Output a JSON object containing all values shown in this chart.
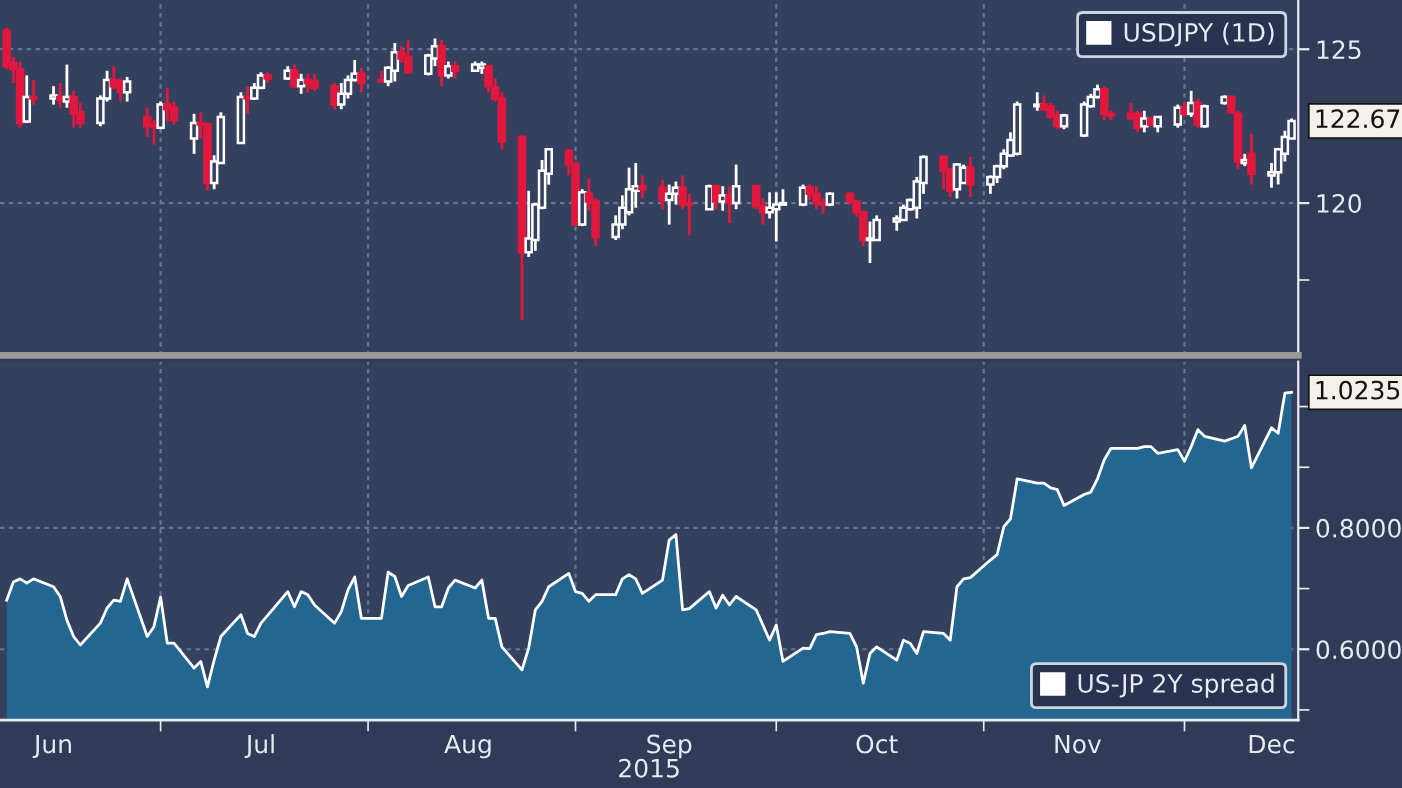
{
  "chart_data": [
    {
      "type": "candlestick",
      "x": [
        "2015-06-08",
        "2015-06-09",
        "2015-06-10",
        "2015-06-11",
        "2015-06-12",
        "2015-06-15",
        "2015-06-16",
        "2015-06-17",
        "2015-06-18",
        "2015-06-19",
        "2015-06-22",
        "2015-06-23",
        "2015-06-24",
        "2015-06-25",
        "2015-06-26",
        "2015-06-29",
        "2015-06-30",
        "2015-07-01",
        "2015-07-02",
        "2015-07-03",
        "2015-07-06",
        "2015-07-07",
        "2015-07-08",
        "2015-07-09",
        "2015-07-10",
        "2015-07-13",
        "2015-07-14",
        "2015-07-15",
        "2015-07-16",
        "2015-07-17",
        "2015-07-20",
        "2015-07-21",
        "2015-07-22",
        "2015-07-23",
        "2015-07-24",
        "2015-07-27",
        "2015-07-28",
        "2015-07-29",
        "2015-07-30",
        "2015-07-31",
        "2015-08-03",
        "2015-08-04",
        "2015-08-05",
        "2015-08-06",
        "2015-08-07",
        "2015-08-10",
        "2015-08-11",
        "2015-08-12",
        "2015-08-13",
        "2015-08-14",
        "2015-08-17",
        "2015-08-18",
        "2015-08-19",
        "2015-08-20",
        "2015-08-21",
        "2015-08-24",
        "2015-08-25",
        "2015-08-26",
        "2015-08-27",
        "2015-08-28",
        "2015-08-31",
        "2015-09-01",
        "2015-09-02",
        "2015-09-03",
        "2015-09-04",
        "2015-09-07",
        "2015-09-08",
        "2015-09-09",
        "2015-09-10",
        "2015-09-11",
        "2015-09-14",
        "2015-09-15",
        "2015-09-16",
        "2015-09-17",
        "2015-09-18",
        "2015-09-21",
        "2015-09-22",
        "2015-09-23",
        "2015-09-24",
        "2015-09-25",
        "2015-09-28",
        "2015-09-29",
        "2015-09-30",
        "2015-10-01",
        "2015-10-02",
        "2015-10-05",
        "2015-10-06",
        "2015-10-07",
        "2015-10-08",
        "2015-10-09",
        "2015-10-12",
        "2015-10-13",
        "2015-10-14",
        "2015-10-15",
        "2015-10-16",
        "2015-10-19",
        "2015-10-20",
        "2015-10-21",
        "2015-10-22",
        "2015-10-23",
        "2015-10-26",
        "2015-10-27",
        "2015-10-28",
        "2015-10-29",
        "2015-10-30",
        "2015-11-02",
        "2015-11-03",
        "2015-11-04",
        "2015-11-05",
        "2015-11-06",
        "2015-11-09",
        "2015-11-10",
        "2015-11-11",
        "2015-11-12",
        "2015-11-13",
        "2015-11-16",
        "2015-11-17",
        "2015-11-18",
        "2015-11-19",
        "2015-11-20",
        "2015-11-23",
        "2015-11-24",
        "2015-11-25",
        "2015-11-26",
        "2015-11-27",
        "2015-11-30",
        "2015-12-01",
        "2015-12-02",
        "2015-12-03",
        "2015-12-04",
        "2015-12-07",
        "2015-12-08",
        "2015-12-09",
        "2015-12-10",
        "2015-12-11",
        "2015-12-14",
        "2015-12-15",
        "2015-12-16",
        "2015-12-17"
      ],
      "series": [
        {
          "name": "USDJPY (1D)",
          "colors": [
            "#e3173d",
            "#e3173d",
            "#e3173d",
            "#ffffff",
            "#e3173d",
            "#ffffff",
            "#e3173d",
            "#ffffff",
            "#e3173d",
            "#e3173d",
            "#ffffff",
            "#ffffff",
            "#e3173d",
            "#e3173d",
            "#ffffff",
            "#e3173d",
            "#e3173d",
            "#ffffff",
            "#e3173d",
            "#e3173d",
            "#ffffff",
            "#e3173d",
            "#e3173d",
            "#ffffff",
            "#ffffff",
            "#ffffff",
            "#e3173d",
            "#ffffff",
            "#ffffff",
            "#e3173d",
            "#ffffff",
            "#e3173d",
            "#ffffff",
            "#e3173d",
            "#e3173d",
            "#e3173d",
            "#ffffff",
            "#ffffff",
            "#ffffff",
            "#e3173d",
            "#e3173d",
            "#ffffff",
            "#ffffff",
            "#e3173d",
            "#e3173d",
            "#ffffff",
            "#ffffff",
            "#e3173d",
            "#ffffff",
            "#e3173d",
            "#ffffff",
            "#ffffff",
            "#e3173d",
            "#e3173d",
            "#e3173d",
            "#e3173d",
            "#ffffff",
            "#ffffff",
            "#ffffff",
            "#ffffff",
            "#e3173d",
            "#e3173d",
            "#ffffff",
            "#e3173d",
            "#e3173d",
            "#ffffff",
            "#ffffff",
            "#ffffff",
            "#ffffff",
            "#e3173d",
            "#e3173d",
            "#ffffff",
            "#ffffff",
            "#e3173d",
            "#e3173d",
            "#ffffff",
            "#e3173d",
            "#ffffff",
            "#e3173d",
            "#ffffff",
            "#e3173d",
            "#e3173d",
            "#ffffff",
            "#ffffff",
            "#ffffff",
            "#ffffff",
            "#e3173d",
            "#e3173d",
            "#e3173d",
            "#ffffff",
            "#e3173d",
            "#e3173d",
            "#e3173d",
            "#ffffff",
            "#ffffff",
            "#ffffff",
            "#ffffff",
            "#ffffff",
            "#ffffff",
            "#ffffff",
            "#e3173d",
            "#e3173d",
            "#ffffff",
            "#ffffff",
            "#e3173d",
            "#ffffff",
            "#ffffff",
            "#ffffff",
            "#ffffff",
            "#ffffff",
            "#ffffff",
            "#e3173d",
            "#e3173d",
            "#e3173d",
            "#ffffff",
            "#ffffff",
            "#ffffff",
            "#ffffff",
            "#e3173d",
            "#e3173d",
            "#e3173d",
            "#e3173d",
            "#ffffff",
            "#e3173d",
            "#ffffff",
            "#ffffff",
            "#e3173d",
            "#ffffff",
            "#e3173d",
            "#ffffff",
            "#ffffff",
            "#e3173d",
            "#e3173d",
            "#ffffff",
            "#e3173d",
            "#ffffff",
            "#ffffff",
            "#ffffff",
            "#ffffff"
          ],
          "ohlc": [
            [
              125.6,
              125.7,
              124.35,
              124.45
            ],
            [
              124.55,
              124.75,
              123.9,
              124.35
            ],
            [
              124.35,
              124.6,
              122.45,
              122.6
            ],
            [
              122.65,
              124.15,
              122.6,
              123.45
            ],
            [
              123.45,
              124.0,
              123.2,
              123.4
            ],
            [
              123.4,
              123.8,
              123.2,
              123.5
            ],
            [
              123.45,
              123.9,
              123.1,
              123.35
            ],
            [
              123.3,
              124.5,
              123.1,
              123.45
            ],
            [
              123.45,
              123.65,
              122.45,
              122.9
            ],
            [
              122.95,
              123.25,
              122.45,
              122.6
            ],
            [
              122.6,
              123.5,
              122.5,
              123.4
            ],
            [
              123.4,
              124.3,
              123.3,
              124.0
            ],
            [
              124.0,
              124.45,
              123.7,
              123.8
            ],
            [
              123.95,
              124.05,
              123.3,
              123.6
            ],
            [
              123.6,
              124.1,
              123.3,
              123.95
            ],
            [
              122.8,
              123.1,
              122.15,
              122.5
            ],
            [
              122.55,
              122.7,
              121.9,
              122.5
            ],
            [
              122.45,
              123.3,
              122.4,
              123.2
            ],
            [
              123.2,
              123.75,
              122.65,
              123.05
            ],
            [
              123.1,
              123.3,
              122.55,
              122.7
            ],
            [
              122.1,
              122.9,
              121.6,
              122.6
            ],
            [
              122.6,
              122.95,
              122.1,
              122.55
            ],
            [
              122.55,
              122.6,
              120.4,
              120.65
            ],
            [
              120.65,
              121.55,
              120.45,
              121.35
            ],
            [
              121.3,
              122.95,
              121.3,
              122.8
            ],
            [
              121.95,
              123.6,
              121.95,
              123.45
            ],
            [
              123.45,
              123.8,
              122.9,
              123.4
            ],
            [
              123.4,
              123.9,
              123.35,
              123.75
            ],
            [
              123.75,
              124.25,
              123.7,
              124.15
            ],
            [
              124.15,
              124.25,
              123.9,
              124.05
            ],
            [
              124.05,
              124.45,
              124.0,
              124.3
            ],
            [
              124.3,
              124.5,
              123.75,
              123.8
            ],
            [
              123.8,
              124.2,
              123.55,
              124.0
            ],
            [
              124.0,
              124.2,
              123.6,
              123.9
            ],
            [
              123.95,
              124.2,
              123.65,
              123.75
            ],
            [
              123.8,
              123.9,
              123.05,
              123.2
            ],
            [
              123.2,
              123.9,
              123.05,
              123.55
            ],
            [
              123.55,
              124.15,
              123.4,
              124.0
            ],
            [
              124.0,
              124.65,
              123.95,
              124.2
            ],
            [
              124.2,
              124.4,
              123.6,
              123.9
            ],
            [
              124.0,
              124.3,
              123.95,
              123.95
            ],
            [
              123.95,
              124.45,
              123.8,
              124.4
            ],
            [
              124.3,
              125.2,
              123.95,
              124.9
            ],
            [
              124.9,
              125.1,
              124.55,
              124.7
            ],
            [
              124.75,
              125.3,
              124.2,
              124.25
            ],
            [
              124.2,
              124.85,
              124.15,
              124.8
            ],
            [
              124.7,
              125.35,
              124.45,
              125.1
            ],
            [
              125.1,
              125.3,
              123.8,
              124.15
            ],
            [
              124.15,
              124.6,
              124.05,
              124.45
            ],
            [
              124.45,
              124.6,
              124.05,
              124.3
            ],
            [
              124.3,
              124.6,
              124.3,
              124.5
            ],
            [
              124.4,
              124.6,
              124.2,
              124.5
            ],
            [
              124.45,
              124.5,
              123.6,
              123.8
            ],
            [
              123.75,
              124.05,
              123.3,
              123.4
            ],
            [
              123.4,
              123.6,
              121.75,
              122.0
            ],
            [
              122.15,
              122.2,
              116.2,
              118.4
            ],
            [
              118.4,
              120.4,
              118.25,
              118.85
            ],
            [
              118.8,
              120.0,
              118.45,
              119.95
            ],
            [
              119.85,
              121.4,
              119.8,
              121.05
            ],
            [
              120.95,
              121.75,
              120.6,
              121.75
            ],
            [
              121.7,
              121.75,
              120.9,
              121.25
            ],
            [
              121.25,
              121.35,
              119.3,
              119.3
            ],
            [
              119.3,
              120.45,
              119.25,
              120.35
            ],
            [
              120.3,
              120.8,
              119.75,
              120.05
            ],
            [
              120.05,
              120.15,
              118.6,
              118.9
            ],
            [
              118.9,
              119.6,
              118.8,
              119.3
            ],
            [
              119.3,
              120.25,
              119.15,
              119.85
            ],
            [
              119.7,
              121.15,
              119.6,
              120.45
            ],
            [
              120.4,
              121.3,
              119.85,
              120.55
            ],
            [
              120.55,
              120.9,
              120.15,
              120.45
            ],
            [
              120.5,
              120.75,
              119.8,
              120.1
            ],
            [
              120.1,
              120.6,
              119.3,
              120.3
            ],
            [
              120.3,
              120.7,
              119.95,
              120.5
            ],
            [
              120.5,
              120.9,
              119.8,
              119.95
            ],
            [
              120.0,
              120.3,
              118.95,
              119.95
            ],
            [
              119.8,
              120.6,
              119.8,
              120.55
            ],
            [
              120.55,
              120.6,
              119.8,
              120.05
            ],
            [
              120.05,
              120.55,
              119.75,
              120.25
            ],
            [
              120.25,
              120.55,
              119.35,
              120.0
            ],
            [
              120.0,
              121.25,
              119.8,
              120.55
            ],
            [
              120.55,
              120.6,
              119.8,
              119.9
            ],
            [
              119.9,
              120.15,
              119.3,
              119.7
            ],
            [
              119.7,
              120.35,
              119.5,
              119.85
            ],
            [
              119.8,
              120.35,
              118.75,
              119.95
            ],
            [
              119.95,
              120.45,
              119.95,
              120.0
            ],
            [
              119.95,
              120.6,
              119.9,
              120.5
            ],
            [
              120.5,
              120.6,
              120.1,
              120.3
            ],
            [
              120.3,
              120.55,
              119.8,
              120.0
            ],
            [
              120.0,
              120.15,
              119.65,
              119.95
            ],
            [
              119.95,
              120.35,
              119.9,
              120.3
            ],
            [
              120.3,
              120.35,
              119.95,
              120.05
            ],
            [
              120.05,
              120.1,
              119.55,
              119.7
            ],
            [
              119.7,
              119.75,
              118.6,
              118.8
            ],
            [
              118.8,
              119.4,
              118.05,
              118.85
            ],
            [
              118.8,
              119.6,
              118.8,
              119.45
            ],
            [
              119.4,
              119.6,
              119.1,
              119.5
            ],
            [
              119.45,
              119.95,
              119.45,
              119.85
            ],
            [
              119.8,
              120.15,
              119.75,
              120.1
            ],
            [
              119.85,
              120.85,
              119.5,
              120.7
            ],
            [
              120.65,
              121.55,
              120.3,
              121.5
            ],
            [
              121.5,
              121.55,
              120.45,
              121.05
            ],
            [
              121.1,
              121.15,
              120.2,
              120.4
            ],
            [
              120.45,
              121.3,
              120.15,
              121.25
            ],
            [
              120.65,
              121.25,
              120.65,
              121.15
            ],
            [
              121.15,
              121.5,
              120.2,
              120.6
            ],
            [
              120.6,
              120.9,
              120.3,
              120.85
            ],
            [
              120.85,
              121.25,
              120.65,
              121.2
            ],
            [
              121.2,
              121.75,
              121.1,
              121.6
            ],
            [
              121.55,
              122.3,
              121.5,
              122.05
            ],
            [
              121.6,
              123.3,
              121.55,
              123.2
            ],
            [
              123.15,
              123.6,
              123.0,
              123.2
            ],
            [
              123.2,
              123.5,
              123.0,
              123.05
            ],
            [
              123.15,
              123.25,
              122.75,
              122.8
            ],
            [
              122.85,
              123.0,
              122.4,
              122.5
            ],
            [
              122.5,
              122.9,
              122.4,
              122.85
            ],
            [
              122.2,
              123.3,
              122.15,
              123.2
            ],
            [
              123.15,
              123.55,
              123.1,
              123.45
            ],
            [
              123.45,
              123.85,
              123.4,
              123.7
            ],
            [
              123.7,
              123.8,
              122.7,
              122.9
            ],
            [
              122.9,
              123.0,
              122.7,
              122.85
            ],
            [
              122.9,
              123.25,
              122.7,
              122.75
            ],
            [
              122.9,
              123.0,
              122.3,
              122.45
            ],
            [
              122.5,
              123.0,
              122.3,
              122.75
            ],
            [
              122.75,
              122.8,
              122.5,
              122.55
            ],
            [
              122.5,
              122.8,
              122.3,
              122.8
            ],
            [
              122.55,
              123.2,
              122.45,
              123.1
            ],
            [
              123.1,
              123.3,
              122.8,
              122.9
            ],
            [
              122.9,
              123.65,
              122.8,
              123.25
            ],
            [
              123.25,
              123.4,
              122.45,
              122.55
            ],
            [
              122.5,
              123.2,
              122.45,
              123.15
            ],
            [
              123.25,
              123.5,
              123.2,
              123.45
            ],
            [
              123.45,
              123.5,
              122.9,
              122.95
            ],
            [
              122.9,
              123.0,
              121.1,
              121.35
            ],
            [
              121.3,
              121.6,
              121.2,
              121.4
            ],
            [
              121.6,
              122.25,
              120.6,
              120.95
            ],
            [
              120.9,
              121.3,
              120.5,
              121.0
            ],
            [
              121.0,
              121.75,
              120.6,
              121.75
            ],
            [
              121.6,
              122.35,
              121.35,
              122.15
            ],
            [
              122.1,
              122.75,
              122.1,
              122.67
            ]
          ]
        }
      ],
      "xlim": [
        "2015-06-07",
        "2015-12-18"
      ],
      "xticks": [
        {
          "value": "2015-07-01",
          "label": null
        },
        {
          "value": "2015-08-01",
          "label": null
        },
        {
          "value": "2015-09-01",
          "label": null
        },
        {
          "value": "2015-10-01",
          "label": null
        },
        {
          "value": "2015-11-01",
          "label": null
        },
        {
          "value": "2015-12-01",
          "label": null
        }
      ],
      "ylim": [
        115.05,
        126.6
      ],
      "yticks": [
        {
          "value": 117.5,
          "label": null
        },
        120,
        125
      ],
      "tick_labels": "y",
      "grid": true,
      "legend": "top right",
      "annotations": [
        {
          "text": "122.67",
          "x": "2015-12-17",
          "y": 122.67
        }
      ]
    },
    {
      "type": "area",
      "x": [
        "2015-06-08",
        "2015-06-09",
        "2015-06-10",
        "2015-06-11",
        "2015-06-12",
        "2015-06-15",
        "2015-06-16",
        "2015-06-17",
        "2015-06-18",
        "2015-06-19",
        "2015-06-22",
        "2015-06-23",
        "2015-06-24",
        "2015-06-25",
        "2015-06-26",
        "2015-06-29",
        "2015-06-30",
        "2015-07-01",
        "2015-07-02",
        "2015-07-03",
        "2015-07-06",
        "2015-07-07",
        "2015-07-08",
        "2015-07-09",
        "2015-07-10",
        "2015-07-13",
        "2015-07-14",
        "2015-07-15",
        "2015-07-16",
        "2015-07-17",
        "2015-07-20",
        "2015-07-21",
        "2015-07-22",
        "2015-07-23",
        "2015-07-24",
        "2015-07-27",
        "2015-07-28",
        "2015-07-29",
        "2015-07-30",
        "2015-07-31",
        "2015-08-03",
        "2015-08-04",
        "2015-08-05",
        "2015-08-06",
        "2015-08-07",
        "2015-08-10",
        "2015-08-11",
        "2015-08-12",
        "2015-08-13",
        "2015-08-14",
        "2015-08-17",
        "2015-08-18",
        "2015-08-19",
        "2015-08-20",
        "2015-08-21",
        "2015-08-24",
        "2015-08-25",
        "2015-08-26",
        "2015-08-27",
        "2015-08-28",
        "2015-08-31",
        "2015-09-01",
        "2015-09-02",
        "2015-09-03",
        "2015-09-04",
        "2015-09-07",
        "2015-09-08",
        "2015-09-09",
        "2015-09-10",
        "2015-09-11",
        "2015-09-14",
        "2015-09-15",
        "2015-09-16",
        "2015-09-17",
        "2015-09-18",
        "2015-09-21",
        "2015-09-22",
        "2015-09-23",
        "2015-09-24",
        "2015-09-25",
        "2015-09-28",
        "2015-09-29",
        "2015-09-30",
        "2015-10-01",
        "2015-10-02",
        "2015-10-05",
        "2015-10-06",
        "2015-10-07",
        "2015-10-08",
        "2015-10-09",
        "2015-10-12",
        "2015-10-13",
        "2015-10-14",
        "2015-10-15",
        "2015-10-16",
        "2015-10-19",
        "2015-10-20",
        "2015-10-21",
        "2015-10-22",
        "2015-10-23",
        "2015-10-26",
        "2015-10-27",
        "2015-10-28",
        "2015-10-29",
        "2015-10-30",
        "2015-11-02",
        "2015-11-03",
        "2015-11-04",
        "2015-11-05",
        "2015-11-06",
        "2015-11-09",
        "2015-11-10",
        "2015-11-11",
        "2015-11-12",
        "2015-11-13",
        "2015-11-16",
        "2015-11-17",
        "2015-11-18",
        "2015-11-19",
        "2015-11-20",
        "2015-11-23",
        "2015-11-24",
        "2015-11-25",
        "2015-11-26",
        "2015-11-27",
        "2015-11-30",
        "2015-12-01",
        "2015-12-02",
        "2015-12-03",
        "2015-12-04",
        "2015-12-07",
        "2015-12-08",
        "2015-12-09",
        "2015-12-10",
        "2015-12-11",
        "2015-12-14",
        "2015-12-15",
        "2015-12-16",
        "2015-12-17"
      ],
      "series": [
        {
          "name": "US-JP 2Y spread",
          "color": "#23668f",
          "values": [
            0.681,
            0.711,
            0.716,
            0.709,
            0.716,
            0.703,
            0.687,
            0.648,
            0.621,
            0.607,
            0.643,
            0.668,
            0.681,
            0.679,
            0.716,
            0.621,
            0.637,
            0.686,
            0.61,
            0.61,
            0.569,
            0.58,
            0.538,
            0.582,
            0.621,
            0.657,
            0.626,
            0.621,
            0.643,
            0.656,
            0.695,
            0.67,
            0.695,
            0.69,
            0.673,
            0.643,
            0.662,
            0.698,
            0.719,
            0.651,
            0.651,
            0.727,
            0.72,
            0.687,
            0.705,
            0.719,
            0.67,
            0.67,
            0.701,
            0.714,
            0.701,
            0.714,
            0.651,
            0.651,
            0.604,
            0.566,
            0.602,
            0.665,
            0.679,
            0.703,
            0.725,
            0.695,
            0.692,
            0.679,
            0.69,
            0.69,
            0.716,
            0.723,
            0.716,
            0.692,
            0.714,
            0.78,
            0.789,
            0.665,
            0.667,
            0.695,
            0.668,
            0.689,
            0.673,
            0.687,
            0.665,
            0.64,
            0.615,
            0.64,
            0.58,
            0.602,
            0.601,
            0.624,
            0.626,
            0.629,
            0.626,
            0.604,
            0.544,
            0.593,
            0.604,
            0.582,
            0.615,
            0.61,
            0.593,
            0.629,
            0.626,
            0.615,
            0.703,
            0.716,
            0.718,
            0.747,
            0.756,
            0.802,
            0.815,
            0.881,
            0.874,
            0.874,
            0.866,
            0.863,
            0.837,
            0.855,
            0.859,
            0.881,
            0.912,
            0.931,
            0.931,
            0.931,
            0.934,
            0.934,
            0.923,
            0.929,
            0.91,
            0.934,
            0.962,
            0.951,
            0.943,
            0.947,
            0.951,
            0.969,
            0.899,
            0.965,
            0.956,
            1.022,
            1.0235
          ]
        }
      ],
      "xlim": [
        "2015-06-07",
        "2015-12-18"
      ],
      "xticks": [
        {
          "value": "2015-06-15",
          "label": "Jun"
        },
        {
          "value": "2015-07-01",
          "label": null
        },
        {
          "value": "2015-07-16",
          "label": "Jul"
        },
        {
          "value": "2015-08-01",
          "label": null
        },
        {
          "value": "2015-08-16",
          "label": "Aug"
        },
        {
          "value": "2015-09-01",
          "label": null
        },
        {
          "value": "2015-09-15",
          "label": "Sep"
        },
        {
          "value": "2015-10-01",
          "label": null
        },
        {
          "value": "2015-10-16",
          "label": "Oct"
        },
        {
          "value": "2015-11-01",
          "label": null
        },
        {
          "value": "2015-11-15",
          "label": "Nov"
        },
        {
          "value": "2015-12-01",
          "label": null
        },
        {
          "value": "2015-12-14",
          "label": "Dec"
        }
      ],
      "xlabel": "2015",
      "ylim": [
        0.483,
        1.074
      ],
      "yticks": [
        {
          "value": 0.5,
          "label": null
        },
        {
          "value": 0.6,
          "label": "0.6000"
        },
        {
          "value": 0.7,
          "label": null
        },
        {
          "value": 0.8,
          "label": "0.8000"
        },
        {
          "value": 0.9,
          "label": null
        },
        {
          "value": 1.0,
          "label": null
        }
      ],
      "grid": true,
      "legend": "bottom right",
      "annotations": [
        {
          "text": "1.0235",
          "x": "2015-12-17",
          "y": 1.0235
        }
      ]
    }
  ]
}
